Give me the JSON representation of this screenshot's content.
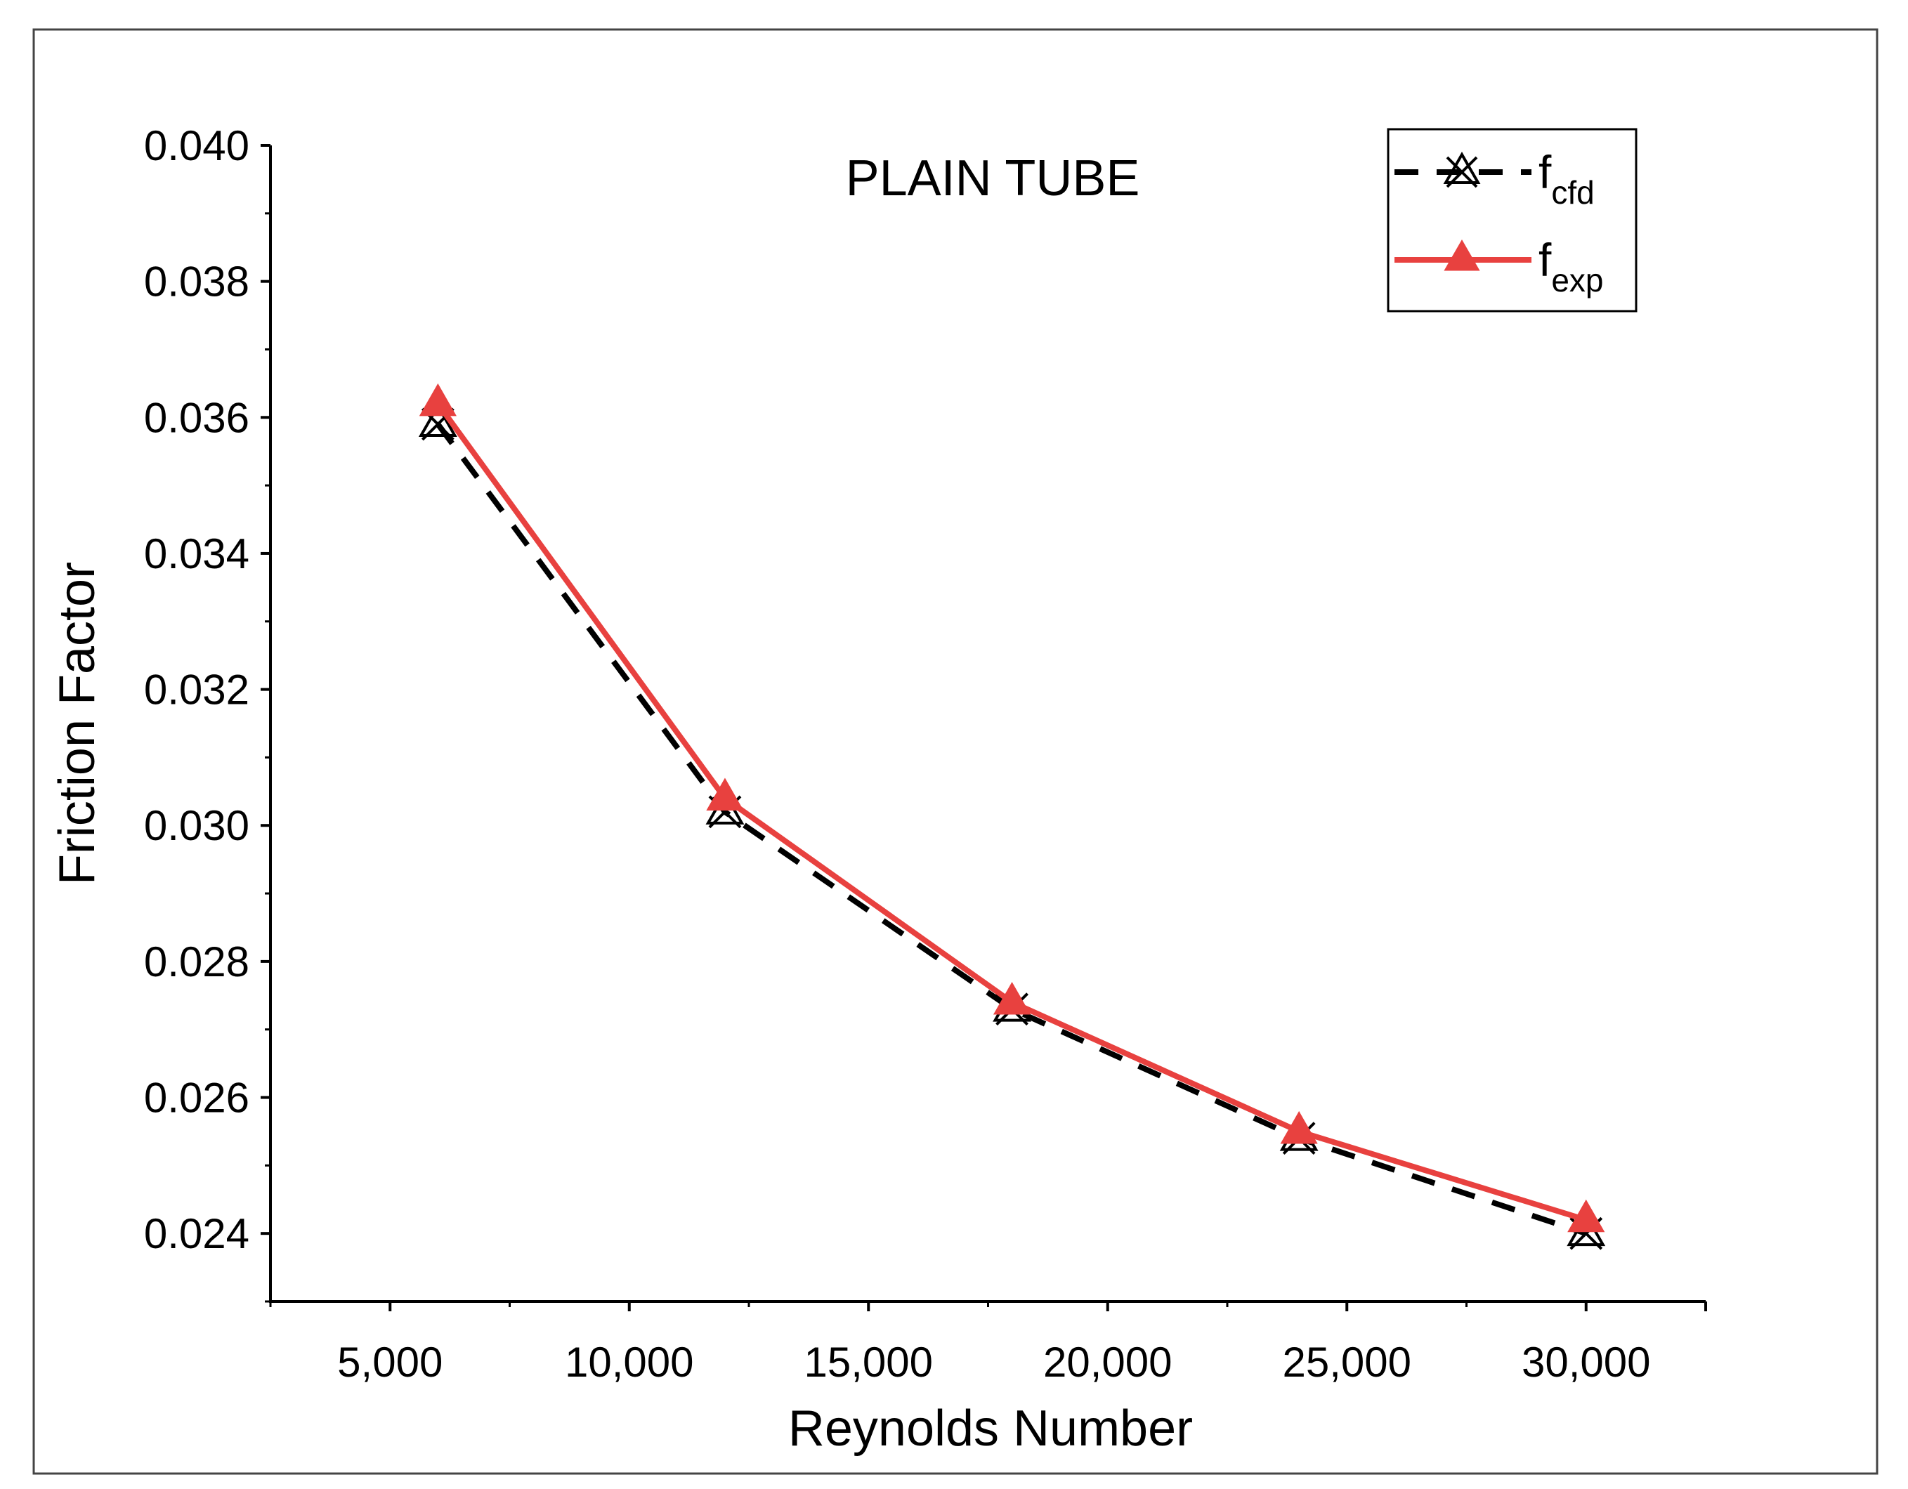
{
  "chart_data": {
    "type": "line",
    "title": "PLAIN TUBE",
    "xlabel": "Reynolds Number",
    "ylabel": "Friction Factor",
    "xlim": [
      2500,
      32500
    ],
    "ylim": [
      0.023,
      0.04
    ],
    "xticks": [
      5000,
      10000,
      15000,
      20000,
      25000,
      30000
    ],
    "xtick_labels": [
      "5,000",
      "10,000",
      "15,000",
      "20,000",
      "25,000",
      "30,000"
    ],
    "yticks": [
      0.024,
      0.026,
      0.028,
      0.03,
      0.032,
      0.034,
      0.036,
      0.038,
      0.04
    ],
    "ytick_labels": [
      "0.024",
      "0.026",
      "0.028",
      "0.030",
      "0.032",
      "0.034",
      "0.036",
      "0.038",
      "0.040"
    ],
    "x": [
      6000,
      12000,
      18000,
      24000,
      30000
    ],
    "series": [
      {
        "name": "f",
        "subscript": "cfd",
        "values": [
          0.0359,
          0.0302,
          0.0273,
          0.0254,
          0.024
        ],
        "color": "#000000",
        "line_style": "dashed",
        "marker": "crossed-triangle"
      },
      {
        "name": "f",
        "subscript": "exp",
        "values": [
          0.0362,
          0.0304,
          0.0274,
          0.0255,
          0.0242
        ],
        "color": "#e8413f",
        "line_style": "solid",
        "marker": "filled-triangle"
      }
    ],
    "legend_position": "top-right",
    "grid": false
  }
}
